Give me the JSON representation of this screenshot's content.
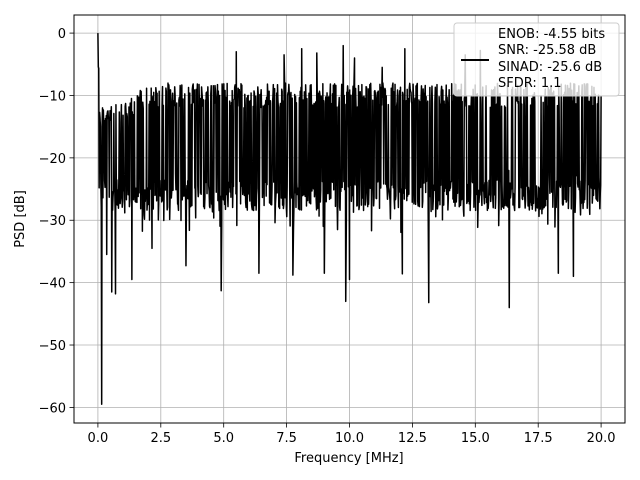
{
  "chart_data": {
    "type": "line",
    "xlabel": "Frequency [MHz]",
    "ylabel": "PSD [dB]",
    "xlim": [
      -0.95,
      20.95
    ],
    "ylim": [
      -62.5,
      2.9
    ],
    "x_ticks": [
      0.0,
      2.5,
      5.0,
      7.5,
      10.0,
      12.5,
      15.0,
      17.5,
      20.0
    ],
    "x_tick_labels": [
      "0.0",
      "2.5",
      "5.0",
      "7.5",
      "10.0",
      "12.5",
      "15.0",
      "17.5",
      "20.0"
    ],
    "y_ticks": [
      0,
      -10,
      -20,
      -30,
      -40,
      -50,
      -60
    ],
    "y_tick_labels": [
      "0",
      "−10",
      "−20",
      "−30",
      "−40",
      "−50",
      "−60"
    ],
    "grid": true,
    "line_color": "#000000",
    "legend": {
      "placement": "top-right",
      "entries": [
        "ENOB: -4.55 bits",
        "SNR: -25.58 dB",
        "SINAD: -25.6 dB",
        "SFDR: 1.1"
      ]
    },
    "series": [
      {
        "x_start": 0.0,
        "x_end": 20.0,
        "num_points": 1200,
        "noise_band": {
          "upper_db": -10,
          "lower_db": -26,
          "typical_db": -18
        },
        "notable_points": [
          {
            "x": 0.0,
            "y": 0.0
          },
          {
            "x": 0.15,
            "y": -59.5
          },
          {
            "x": 0.35,
            "y": -35.5
          },
          {
            "x": 0.55,
            "y": -41.5
          },
          {
            "x": 0.7,
            "y": -41.8
          },
          {
            "x": 1.35,
            "y": -39.5
          },
          {
            "x": 2.15,
            "y": -34.5
          },
          {
            "x": 3.5,
            "y": -37.3
          },
          {
            "x": 4.9,
            "y": -41.3
          },
          {
            "x": 6.4,
            "y": -38.5
          },
          {
            "x": 7.75,
            "y": -38.8
          },
          {
            "x": 9.0,
            "y": -38.5
          },
          {
            "x": 9.85,
            "y": -43.0
          },
          {
            "x": 10.0,
            "y": -39.5
          },
          {
            "x": 12.1,
            "y": -38.6
          },
          {
            "x": 13.15,
            "y": -43.2
          },
          {
            "x": 16.35,
            "y": -44.0
          },
          {
            "x": 18.3,
            "y": -38.5
          },
          {
            "x": 18.9,
            "y": -39.0
          },
          {
            "x": 5.5,
            "y": -3.0
          },
          {
            "x": 7.4,
            "y": -3.5
          },
          {
            "x": 8.1,
            "y": -2.5
          },
          {
            "x": 8.7,
            "y": -3.2
          },
          {
            "x": 9.75,
            "y": -2.0
          },
          {
            "x": 10.2,
            "y": -4.0
          },
          {
            "x": 11.3,
            "y": -5.5
          },
          {
            "x": 12.2,
            "y": -2.5
          },
          {
            "x": 14.6,
            "y": -3.5
          },
          {
            "x": 15.2,
            "y": -2.8
          }
        ]
      }
    ]
  }
}
